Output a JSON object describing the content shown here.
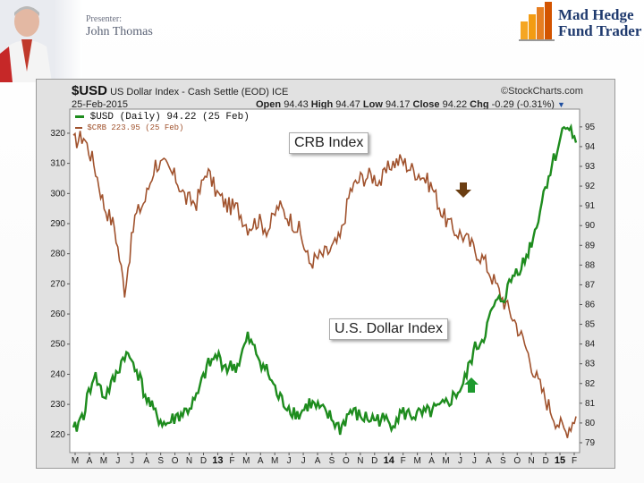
{
  "slide": {
    "presenter_label": "Presenter:",
    "presenter_name": "John Thomas",
    "logo_line1": "Mad Hedge",
    "logo_line2": "Fund Trader"
  },
  "header": {
    "symbol": "$USD",
    "name": "US Dollar Index - Cash Settle (EOD) ICE",
    "source": "©StockCharts.com",
    "date": "25-Feb-2015",
    "open_label": "Open",
    "open": "94.43",
    "high_label": "High",
    "high": "94.47",
    "low_label": "Low",
    "low": "94.17",
    "close_label": "Close",
    "close": "94.22",
    "chg_label": "Chg",
    "chg": "-0.29 (-0.31%)"
  },
  "legend": {
    "usd": "$USD (Daily) 94.22 (25 Feb)",
    "crb": "$CRB 223.95 (25 Feb)"
  },
  "annotations": {
    "crb": "CRB Index",
    "usd": "U.S. Dollar Index"
  },
  "colors": {
    "usd": "#1e8c1e",
    "crb": "#a0522d",
    "arrow_down": "#6b3e12",
    "arrow_up": "#1e9a2e"
  },
  "chart_data": {
    "type": "line",
    "left_axis": {
      "series": "$CRB",
      "ticks": [
        220,
        230,
        240,
        250,
        260,
        270,
        280,
        290,
        300,
        310,
        320
      ],
      "ylim": [
        214,
        328
      ]
    },
    "right_axis": {
      "series": "$USD",
      "ticks": [
        79,
        80,
        81,
        82,
        83,
        84,
        85,
        86,
        87,
        88,
        89,
        90,
        91,
        92,
        93,
        94,
        95
      ],
      "ylim": [
        78.5,
        95.9
      ]
    },
    "x_axis_labels": [
      "M",
      "A",
      "M",
      "J",
      "J",
      "A",
      "S",
      "O",
      "N",
      "D",
      "13",
      "F",
      "M",
      "A",
      "M",
      "J",
      "J",
      "A",
      "S",
      "O",
      "N",
      "D",
      "14",
      "F",
      "M",
      "A",
      "M",
      "J",
      "J",
      "A",
      "S",
      "O",
      "N",
      "D",
      "15",
      "F"
    ],
    "x_year_labels": [
      "13",
      "14",
      "15"
    ],
    "grid": false,
    "series": [
      {
        "name": "$CRB",
        "axis": "left",
        "values": [
          317,
          319,
          310,
          296,
          289,
          268,
          292,
          298,
          310,
          309,
          305,
          298,
          297,
          308,
          300,
          296,
          295,
          289,
          291,
          288,
          296,
          292,
          288,
          277,
          279,
          281,
          285,
          301,
          305,
          306,
          304,
          310,
          311,
          308,
          306,
          302,
          293,
          288,
          286,
          282,
          278,
          271,
          264,
          258,
          250,
          240,
          232,
          225,
          221,
          226
        ]
      },
      {
        "name": "$USD",
        "axis": "right",
        "values": [
          79.5,
          80.5,
          82.5,
          81.3,
          82.2,
          83.5,
          83.0,
          81.4,
          80.4,
          79.9,
          80.3,
          80.6,
          81.2,
          82.8,
          83.4,
          82.8,
          82.9,
          84.3,
          83.4,
          82.5,
          81.3,
          80.8,
          80.4,
          81.0,
          80.7,
          80.3,
          79.7,
          80.6,
          80.3,
          80.2,
          80.2,
          80.0,
          80.5,
          80.4,
          80.4,
          80.6,
          80.8,
          81.3,
          81.9,
          83.6,
          84.4,
          85.9,
          86.4,
          87.6,
          88.2,
          89.7,
          92.0,
          93.6,
          95.3,
          94.2
        ]
      }
    ]
  }
}
